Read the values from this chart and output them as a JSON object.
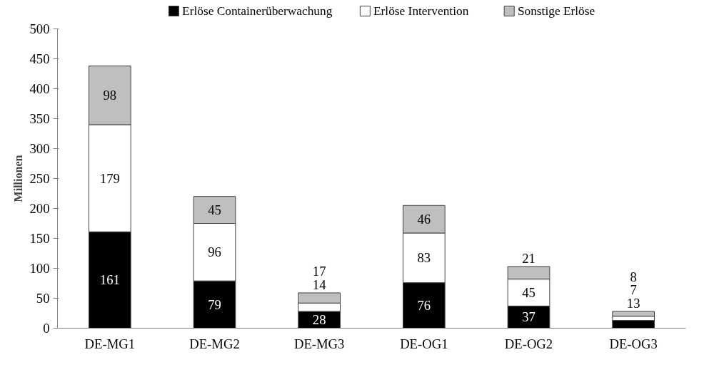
{
  "chart_data": {
    "type": "bar",
    "stacked": true,
    "ylabel": "Millionen",
    "categories": [
      "DE-MG1",
      "DE-MG2",
      "DE-MG3",
      "DE-OG1",
      "DE-OG2",
      "DE-OG3"
    ],
    "series": [
      {
        "name": "Erlöse Containerüberwachung",
        "color": "#000000",
        "values": [
          161,
          79,
          28,
          76,
          37,
          13
        ]
      },
      {
        "name": "Erlöse Intervention",
        "color": "#ffffff",
        "values": [
          179,
          96,
          14,
          83,
          45,
          7
        ]
      },
      {
        "name": "Sonstige Erlöse",
        "color": "#bfbfbf",
        "values": [
          98,
          45,
          17,
          46,
          21,
          8
        ]
      }
    ],
    "ylim": [
      0,
      500
    ],
    "yticks": [
      0,
      50,
      100,
      150,
      200,
      250,
      300,
      350,
      400,
      450,
      500
    ],
    "grid": false,
    "legend": "top",
    "data_labels": true
  }
}
